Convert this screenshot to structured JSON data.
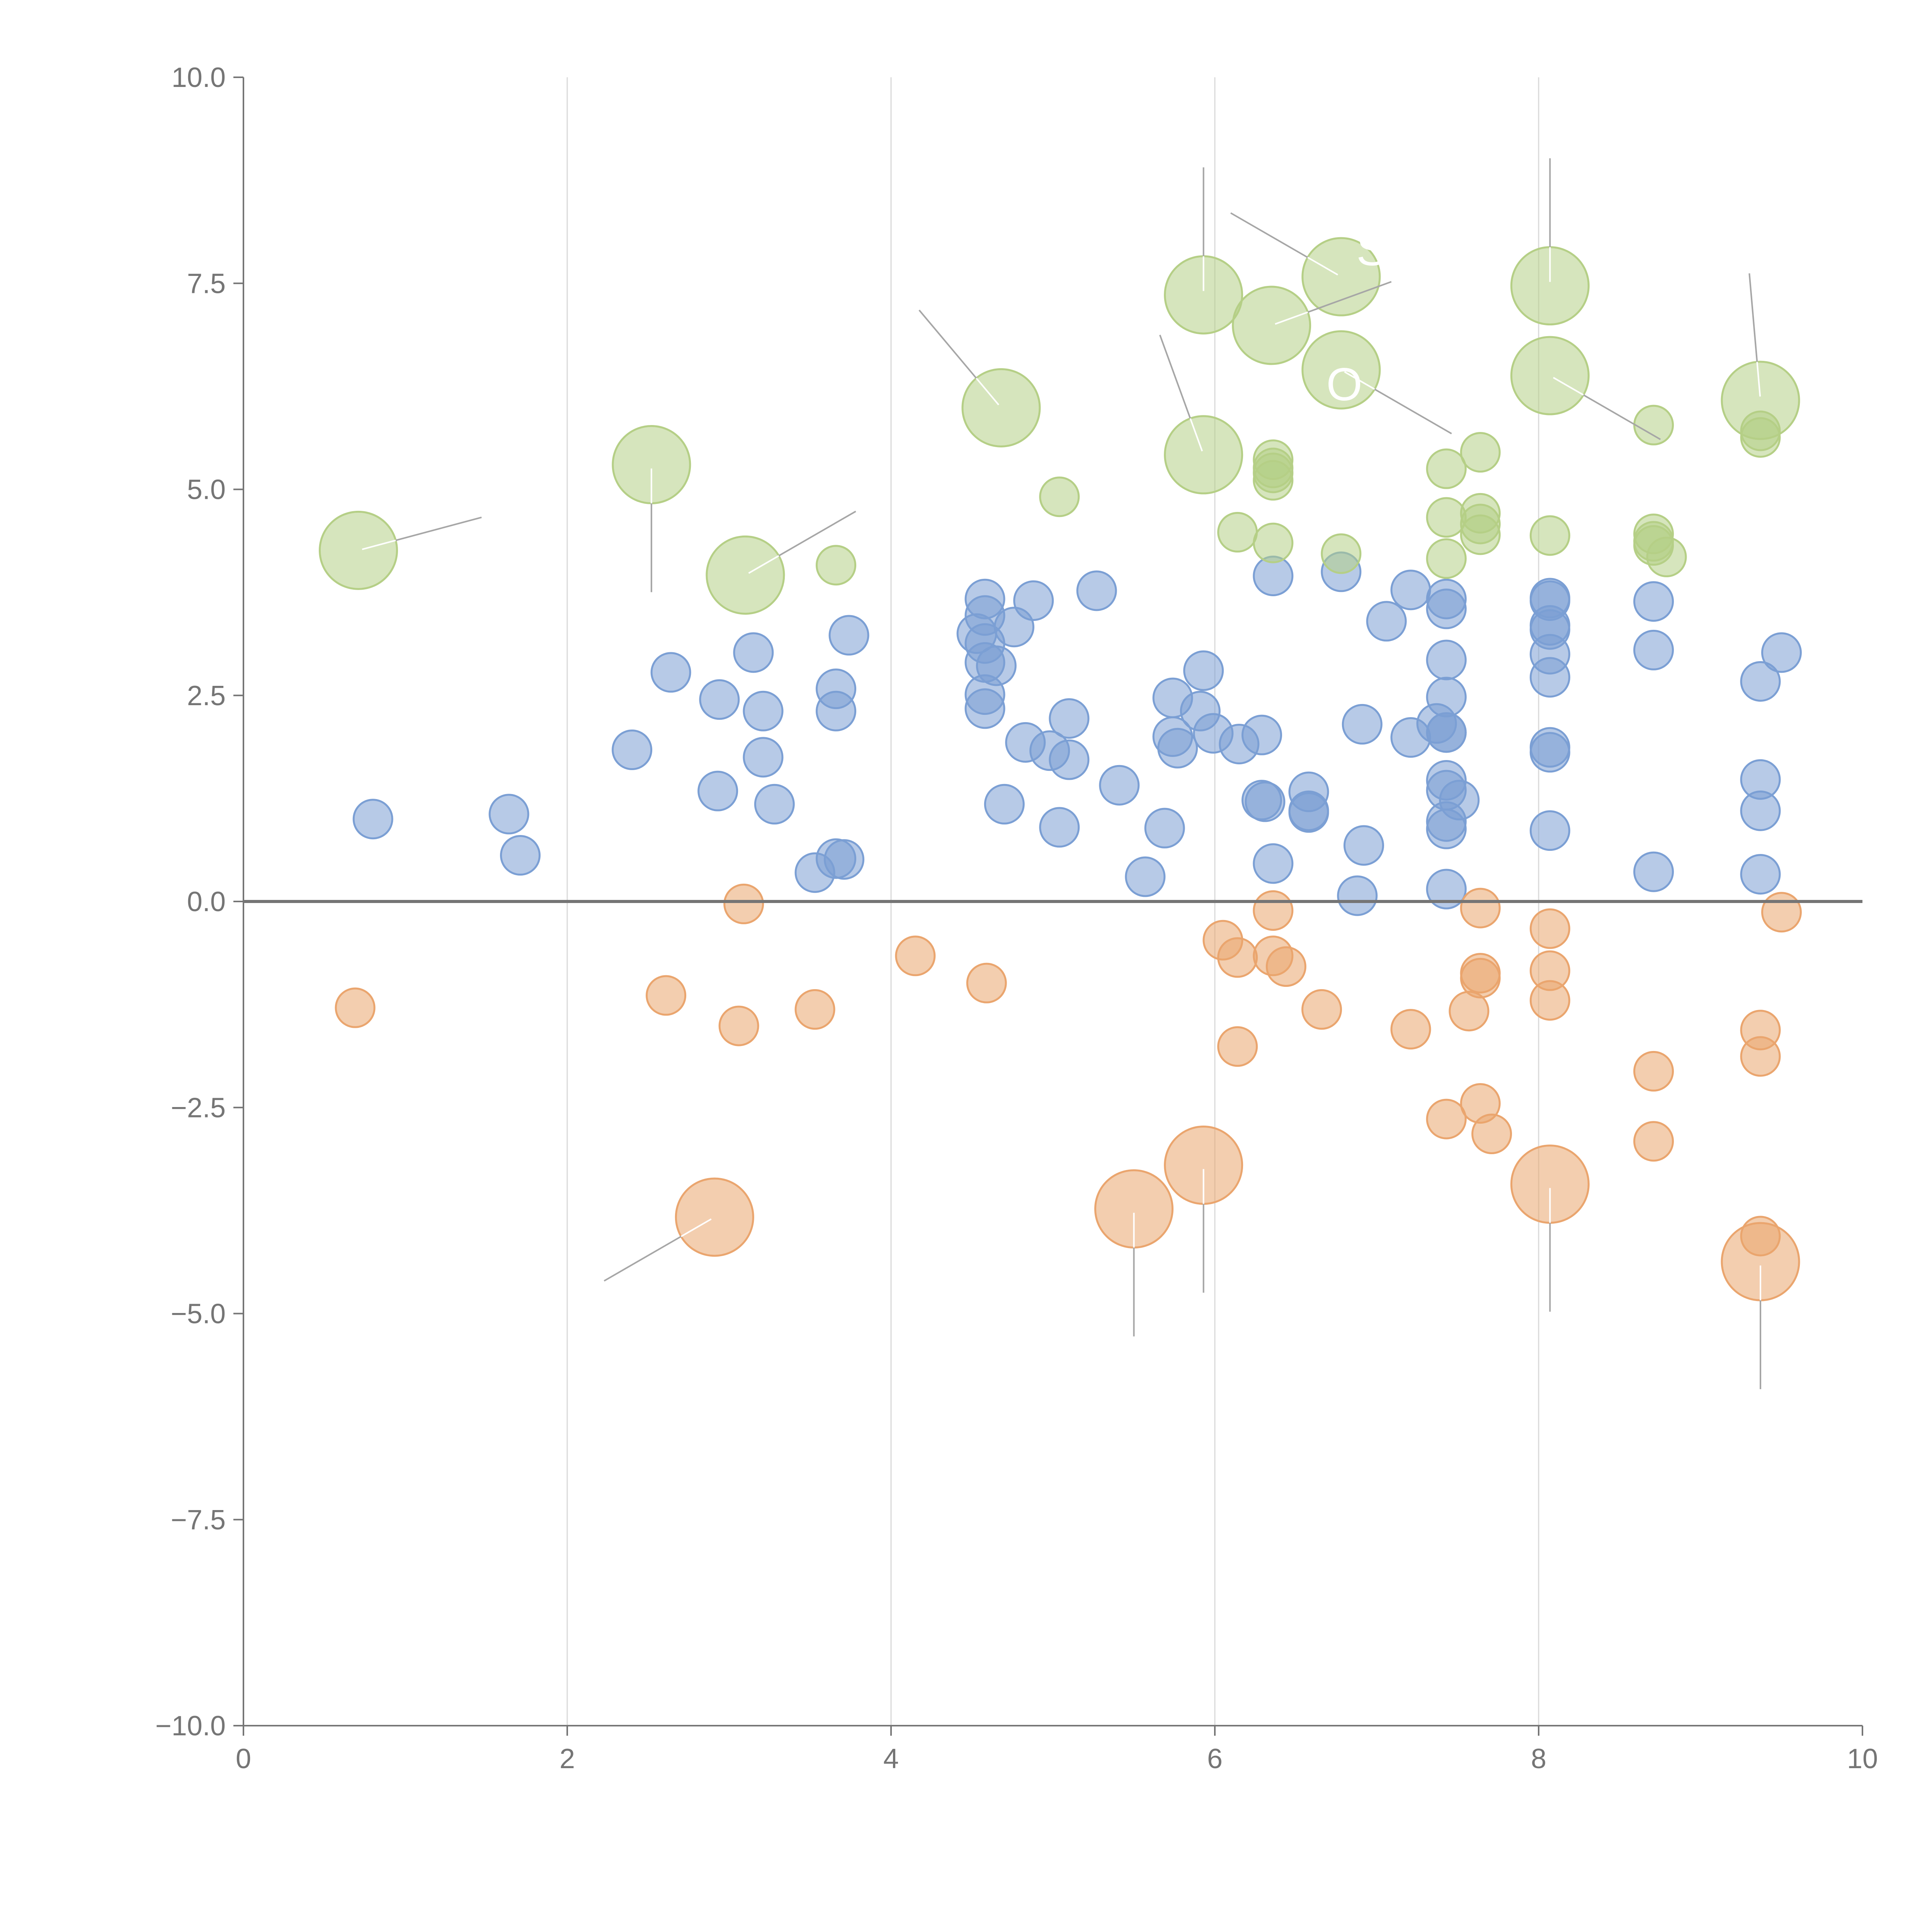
{
  "chart_data": {
    "type": "scatter",
    "title": "",
    "xlabel": "",
    "ylabel": "",
    "xlim": [
      0,
      10
    ],
    "ylim": [
      -10,
      10
    ],
    "x_ticks": [
      "0",
      "2",
      "4",
      "6",
      "8",
      "10"
    ],
    "y_ticks": [
      "10.0",
      "7.5",
      "5.0",
      "2.5",
      "0.0",
      "−2.5",
      "−5.0",
      "−7.5",
      "−10.0"
    ],
    "x_tick_values": [
      0,
      2,
      4,
      6,
      8,
      10
    ],
    "y_tick_values": [
      10,
      7.5,
      5,
      2.5,
      0,
      -2.5,
      -5,
      -7.5,
      -10
    ],
    "vertical_gridlines_at": [
      2,
      4,
      6,
      8
    ],
    "reference_line_y": 0,
    "colors": {
      "blue": "#7b9fd4",
      "orange": "#eaa56e",
      "green": "#b5cf86",
      "axis": "#757575",
      "grid": "#d9d9d9",
      "leader": "#a6a6a6"
    },
    "series": [
      {
        "name": "blue",
        "color": "#7b9fd4",
        "points": [
          [
            0.8,
            1.0
          ],
          [
            1.64,
            1.06
          ],
          [
            1.71,
            0.56
          ],
          [
            2.4,
            1.84
          ],
          [
            2.64,
            2.78
          ],
          [
            2.94,
            2.45
          ],
          [
            2.93,
            1.34
          ],
          [
            3.15,
            3.02
          ],
          [
            3.21,
            2.31
          ],
          [
            3.21,
            1.75
          ],
          [
            3.28,
            1.18
          ],
          [
            3.53,
            0.35
          ],
          [
            3.66,
            0.52
          ],
          [
            3.71,
            0.51
          ],
          [
            3.66,
            2.58
          ],
          [
            3.66,
            2.31
          ],
          [
            3.74,
            3.23
          ],
          [
            4.58,
            3.67
          ],
          [
            4.58,
            3.47
          ],
          [
            4.53,
            3.25
          ],
          [
            4.58,
            3.13
          ],
          [
            4.58,
            2.9
          ],
          [
            4.65,
            2.86
          ],
          [
            4.58,
            2.51
          ],
          [
            4.58,
            2.34
          ],
          [
            4.76,
            3.33
          ],
          [
            4.88,
            3.65
          ],
          [
            4.83,
            1.93
          ],
          [
            4.7,
            1.18
          ],
          [
            4.98,
            1.83
          ],
          [
            5.1,
            2.22
          ],
          [
            5.1,
            1.72
          ],
          [
            5.04,
            0.9
          ],
          [
            5.27,
            3.77
          ],
          [
            5.41,
            1.41
          ],
          [
            5.57,
            0.3
          ],
          [
            5.69,
            0.89
          ],
          [
            5.74,
            2.47
          ],
          [
            5.74,
            2.0
          ],
          [
            5.77,
            1.86
          ],
          [
            5.93,
            2.8
          ],
          [
            5.91,
            2.31
          ],
          [
            5.99,
            2.04
          ],
          [
            6.15,
            1.91
          ],
          [
            6.29,
            2.02
          ],
          [
            6.29,
            1.23
          ],
          [
            6.31,
            1.21
          ],
          [
            6.36,
            3.95
          ],
          [
            6.36,
            0.46
          ],
          [
            6.58,
            1.33
          ],
          [
            6.58,
            1.1
          ],
          [
            6.58,
            1.08
          ],
          [
            6.78,
            4.0
          ],
          [
            6.88,
            0.07
          ],
          [
            6.91,
            2.15
          ],
          [
            6.92,
            0.68
          ],
          [
            7.06,
            3.4
          ],
          [
            7.21,
            3.78
          ],
          [
            7.21,
            1.99
          ],
          [
            7.37,
            2.16
          ],
          [
            7.43,
            3.67
          ],
          [
            7.43,
            3.55
          ],
          [
            7.43,
            2.93
          ],
          [
            7.43,
            2.48
          ],
          [
            7.43,
            2.05
          ],
          [
            7.43,
            2.05
          ],
          [
            7.43,
            1.47
          ],
          [
            7.43,
            1.35
          ],
          [
            7.51,
            1.23
          ],
          [
            7.43,
            0.97
          ],
          [
            7.43,
            0.88
          ],
          [
            7.43,
            0.15
          ],
          [
            8.07,
            3.68
          ],
          [
            8.07,
            3.65
          ],
          [
            8.07,
            3.35
          ],
          [
            8.07,
            3.3
          ],
          [
            8.07,
            3.0
          ],
          [
            8.07,
            2.72
          ],
          [
            8.07,
            1.87
          ],
          [
            8.07,
            1.81
          ],
          [
            8.07,
            0.86
          ],
          [
            8.71,
            3.64
          ],
          [
            8.71,
            3.05
          ],
          [
            8.71,
            0.36
          ],
          [
            9.37,
            2.67
          ],
          [
            9.37,
            1.48
          ],
          [
            9.37,
            1.1
          ],
          [
            9.37,
            0.33
          ],
          [
            9.5,
            3.02
          ]
        ]
      },
      {
        "name": "orange",
        "color": "#eaa56e",
        "points": [
          [
            0.69,
            -1.29
          ],
          [
            2.61,
            -1.14
          ],
          [
            3.06,
            -1.51
          ],
          [
            3.09,
            -0.03
          ],
          [
            3.53,
            -1.31
          ],
          [
            4.15,
            -0.66
          ],
          [
            4.59,
            -0.99
          ],
          [
            6.05,
            -0.47
          ],
          [
            6.14,
            -0.68
          ],
          [
            6.14,
            -1.76
          ],
          [
            6.36,
            -0.11
          ],
          [
            6.36,
            -0.66
          ],
          [
            6.44,
            -0.79
          ],
          [
            6.66,
            -1.31
          ],
          [
            7.21,
            -1.55
          ],
          [
            7.43,
            -2.64
          ],
          [
            7.57,
            -1.33
          ],
          [
            7.64,
            -0.08
          ],
          [
            7.64,
            -0.87
          ],
          [
            7.64,
            -0.93
          ],
          [
            7.64,
            -2.45
          ],
          [
            7.71,
            -2.82
          ],
          [
            8.07,
            -0.33
          ],
          [
            8.07,
            -0.84
          ],
          [
            8.07,
            -1.2
          ],
          [
            8.71,
            -2.06
          ],
          [
            8.71,
            -2.91
          ],
          [
            9.37,
            -1.56
          ],
          [
            9.37,
            -1.88
          ],
          [
            9.37,
            -4.06
          ],
          [
            9.5,
            -0.13
          ]
        ]
      },
      {
        "name": "green",
        "color": "#b5cf86",
        "points": [
          [
            3.66,
            4.08
          ],
          [
            5.04,
            4.91
          ],
          [
            6.14,
            4.48
          ],
          [
            6.36,
            5.36
          ],
          [
            6.36,
            5.26
          ],
          [
            6.36,
            5.2
          ],
          [
            6.36,
            5.11
          ],
          [
            6.36,
            4.35
          ],
          [
            6.78,
            4.22
          ],
          [
            7.43,
            5.25
          ],
          [
            7.43,
            4.66
          ],
          [
            7.43,
            4.16
          ],
          [
            7.64,
            5.45
          ],
          [
            7.64,
            4.71
          ],
          [
            7.64,
            4.58
          ],
          [
            7.64,
            4.45
          ],
          [
            8.07,
            4.44
          ],
          [
            8.71,
            5.78
          ],
          [
            8.71,
            4.46
          ],
          [
            8.71,
            4.37
          ],
          [
            8.71,
            4.32
          ],
          [
            8.79,
            4.18
          ],
          [
            9.37,
            5.71
          ],
          [
            9.37,
            5.63
          ]
        ]
      }
    ],
    "highlighted_points": [
      {
        "series": "green",
        "x": 0.71,
        "y": 4.26,
        "leader_angle": 15
      },
      {
        "series": "green",
        "x": 2.52,
        "y": 5.3,
        "leader_angle": -90
      },
      {
        "series": "green",
        "x": 3.1,
        "y": 3.96,
        "leader_angle": 30
      },
      {
        "series": "green",
        "x": 4.68,
        "y": 5.99,
        "leader_angle": 130
      },
      {
        "series": "green",
        "x": 5.93,
        "y": 7.36,
        "leader_angle": 90
      },
      {
        "series": "green",
        "x": 5.93,
        "y": 5.42,
        "leader_angle": 110
      },
      {
        "series": "green",
        "x": 6.35,
        "y": 6.99,
        "leader_angle": 20
      },
      {
        "series": "green",
        "x": 6.78,
        "y": 7.58,
        "leader_angle": 150
      },
      {
        "series": "green",
        "x": 6.78,
        "y": 6.45,
        "leader_angle": -30
      },
      {
        "series": "green",
        "x": 8.07,
        "y": 7.47,
        "leader_angle": 90
      },
      {
        "series": "green",
        "x": 8.07,
        "y": 6.38,
        "leader_angle": -30
      },
      {
        "series": "green",
        "x": 9.37,
        "y": 6.08,
        "leader_angle": 95
      },
      {
        "series": "orange",
        "x": 2.91,
        "y": -3.83,
        "leader_angle": 210
      },
      {
        "series": "orange",
        "x": 5.5,
        "y": -3.73,
        "leader_angle": 270
      },
      {
        "series": "orange",
        "x": 5.93,
        "y": -3.2,
        "leader_angle": 270
      },
      {
        "series": "orange",
        "x": 8.07,
        "y": -3.43,
        "leader_angle": 270
      },
      {
        "series": "orange",
        "x": 9.37,
        "y": -4.37,
        "leader_angle": 270
      }
    ],
    "annotations": [
      {
        "text": "S",
        "x": 6.97,
        "y": 7.72
      },
      {
        "text": "O",
        "x": 6.8,
        "y": 6.08
      }
    ]
  }
}
